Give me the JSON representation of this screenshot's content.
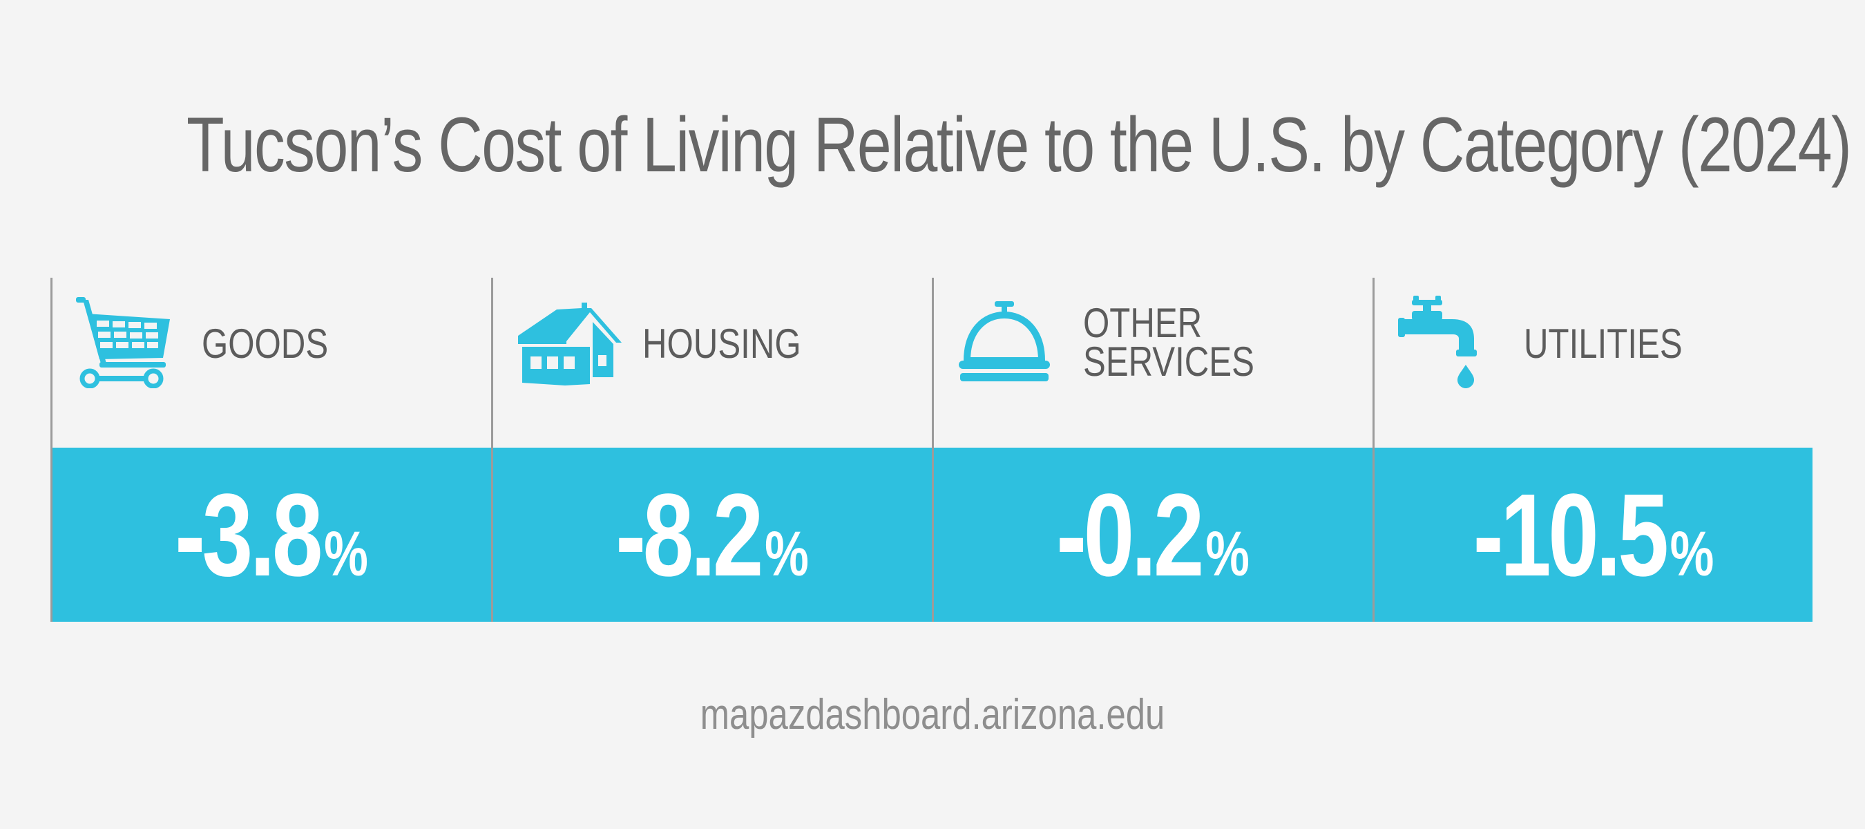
{
  "title": "Tucson’s Cost of Living Relative to the U.S. by Category (2024)",
  "categories": [
    {
      "label_lines": [
        "GOODS"
      ],
      "value": "-3.8",
      "unit": "%",
      "icon": "shopping-cart-icon"
    },
    {
      "label_lines": [
        "HOUSING"
      ],
      "value": "-8.2",
      "unit": "%",
      "icon": "house-icon"
    },
    {
      "label_lines": [
        "OTHER",
        "SERVICES"
      ],
      "value": "-0.2",
      "unit": "%",
      "icon": "service-bell-icon"
    },
    {
      "label_lines": [
        "UTILITIES"
      ],
      "value": "-10.5",
      "unit": "%",
      "icon": "faucet-icon"
    }
  ],
  "source": "mapazdashboard.arizona.edu",
  "colors": {
    "background": "#f4f4f4",
    "accent": "#2ec0df",
    "title_text": "#666666",
    "label_text": "#5c5c5c",
    "value_text": "#ffffff",
    "divider": "#9b9b9b",
    "source_text": "#8e8e8e"
  }
}
